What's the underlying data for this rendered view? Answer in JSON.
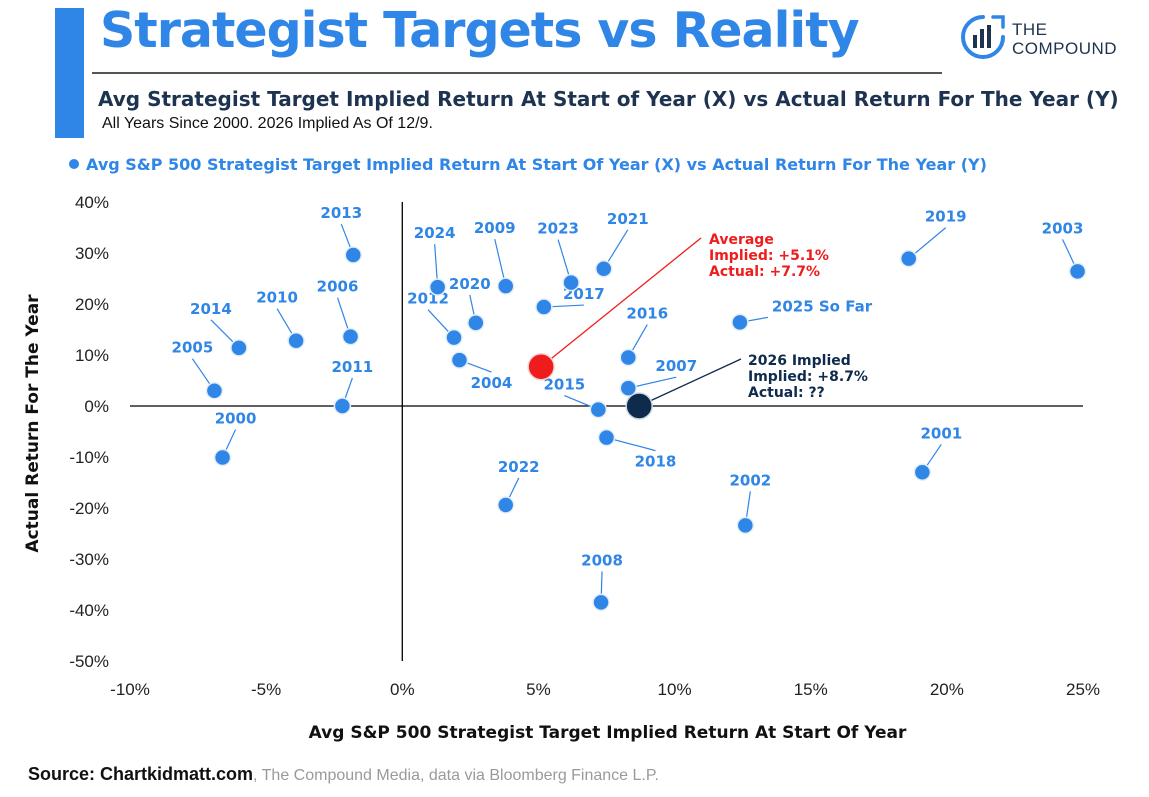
{
  "header": {
    "title": "Strategist Targets vs Reality",
    "subtitle": "Avg Strategist Target Implied Return At Start of Year (X) vs Actual Return For The Year (Y)",
    "note": "All Years Since 2000. 2026 Implied As Of 12/9.",
    "logo_line1": "THE",
    "logo_line2": "COMPOUND",
    "logo_icon": "bar-chart-circle-icon"
  },
  "footer": {
    "source_bold": "Source: Chartkidmatt.com",
    "source_rest": ", The Compound Media, data via Bloomberg Finance L.P."
  },
  "colors": {
    "accent": "#2f86e6",
    "navy": "#0e2a4d",
    "red": "#ee1c1c"
  },
  "chart_data": {
    "type": "scatter",
    "legend": "Avg S&P 500 Strategist Target Implied Return At Start Of Year (X) vs Actual Return For The Year (Y)",
    "legend_position": "top",
    "xlabel": "Avg S&P 500 Strategist Target Implied Return At Start Of Year",
    "ylabel": "Actual Return For The Year",
    "xlim": [
      -10,
      25
    ],
    "ylim": [
      -50,
      40
    ],
    "xticks": [
      -10,
      -5,
      0,
      5,
      10,
      15,
      20,
      25
    ],
    "yticks": [
      40,
      30,
      20,
      10,
      0,
      -10,
      -20,
      -30,
      -40,
      -50
    ],
    "tick_suffix": "%",
    "grid": false,
    "points": [
      {
        "label": "2000",
        "x": -6.6,
        "y": -10.1
      },
      {
        "label": "2001",
        "x": 19.1,
        "y": -13.0
      },
      {
        "label": "2002",
        "x": 12.6,
        "y": -23.4
      },
      {
        "label": "2003",
        "x": 24.8,
        "y": 26.4
      },
      {
        "label": "2004",
        "x": 2.1,
        "y": 9.0
      },
      {
        "label": "2005",
        "x": -6.9,
        "y": 3.0
      },
      {
        "label": "2006",
        "x": -1.9,
        "y": 13.6
      },
      {
        "label": "2007",
        "x": 8.3,
        "y": 3.5
      },
      {
        "label": "2008",
        "x": 7.3,
        "y": -38.5
      },
      {
        "label": "2009",
        "x": 3.8,
        "y": 23.5
      },
      {
        "label": "2010",
        "x": -3.9,
        "y": 12.8
      },
      {
        "label": "2011",
        "x": -2.2,
        "y": 0.0
      },
      {
        "label": "2012",
        "x": 1.9,
        "y": 13.4
      },
      {
        "label": "2013",
        "x": -1.8,
        "y": 29.6
      },
      {
        "label": "2014",
        "x": -6.0,
        "y": 11.4
      },
      {
        "label": "2015",
        "x": 7.2,
        "y": -0.7
      },
      {
        "label": "2016",
        "x": 8.3,
        "y": 9.5
      },
      {
        "label": "2017",
        "x": 5.2,
        "y": 19.4
      },
      {
        "label": "2018",
        "x": 7.5,
        "y": -6.2
      },
      {
        "label": "2019",
        "x": 18.6,
        "y": 28.9
      },
      {
        "label": "2020",
        "x": 2.7,
        "y": 16.3
      },
      {
        "label": "2021",
        "x": 7.4,
        "y": 26.9
      },
      {
        "label": "2022",
        "x": 3.8,
        "y": -19.4
      },
      {
        "label": "2023",
        "x": 6.2,
        "y": 24.2
      },
      {
        "label": "2024",
        "x": 1.3,
        "y": 23.3
      },
      {
        "label": "2025 So Far",
        "x": 12.4,
        "y": 16.4
      }
    ],
    "average": {
      "x": 5.1,
      "y": 7.7,
      "lines": [
        "Average",
        "Implied: +5.1%",
        "Actual: +7.7%"
      ]
    },
    "implied_2026": {
      "x": 8.7,
      "y": 0,
      "lines": [
        "2026 Implied",
        "Implied: +8.7%",
        "Actual: ??"
      ]
    }
  }
}
